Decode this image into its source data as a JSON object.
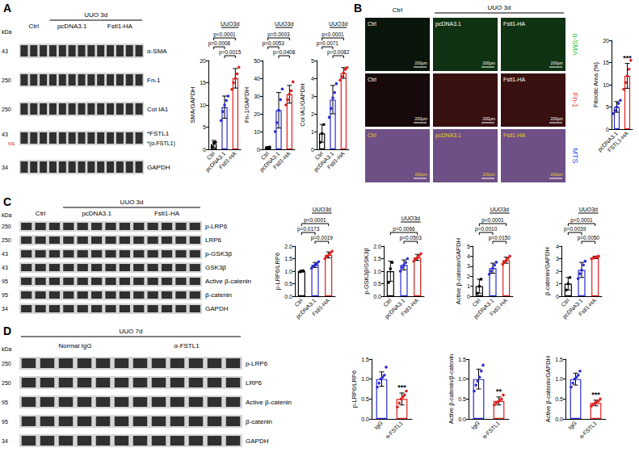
{
  "chart_data": [
    {
      "type": "bar",
      "ylabel": "SMA/GAPDH",
      "categories": [
        "Ctrl",
        "pcDNA3.1",
        "Fstl1-HA"
      ],
      "colors": [
        "#000000",
        "#2b2bd6",
        "#e02020"
      ],
      "values": [
        1.2,
        9.5,
        16
      ],
      "errors": [
        0.8,
        2.5,
        2.2
      ],
      "points": [
        [
          0.6,
          1.5,
          1.6
        ],
        [
          6.5,
          8.5,
          10,
          11,
          12
        ],
        [
          13.5,
          15,
          16,
          17,
          18.5
        ]
      ],
      "ylim": [
        0,
        20
      ],
      "yticks": [
        0,
        5,
        10,
        15,
        20
      ],
      "annotations": [
        {
          "text": "UUO3d",
          "between": [
            "pcDNA3.1",
            "Fstl1-HA"
          ],
          "kind": "condition"
        },
        {
          "text": "p<0.0001",
          "between": [
            "Ctrl",
            "Fstl1-HA"
          ]
        },
        {
          "text": "p=0.0008",
          "between": [
            "Ctrl",
            "pcDNA3.1"
          ]
        },
        {
          "text": "p=0.0015",
          "between": [
            "pcDNA3.1",
            "Fstl1-HA"
          ]
        }
      ]
    },
    {
      "type": "bar",
      "ylabel": "Fn-1/GAPDH",
      "categories": [
        "Ctrl",
        "pcDNA3.1",
        "Fstl1-HA"
      ],
      "colors": [
        "#000000",
        "#2b2bd6",
        "#e02020"
      ],
      "values": [
        1,
        22,
        31
      ],
      "errors": [
        0.5,
        10,
        5
      ],
      "points": [
        [
          0.6,
          1,
          1.3
        ],
        [
          10,
          15,
          22,
          28,
          34
        ],
        [
          25,
          28,
          31,
          33,
          38
        ]
      ],
      "ylim": [
        0,
        50
      ],
      "yticks": [
        0,
        10,
        20,
        30,
        40,
        50
      ],
      "annotations": [
        {
          "text": "UUO3d",
          "between": [
            "pcDNA3.1",
            "Fstl1-HA"
          ],
          "kind": "condition"
        },
        {
          "text": "p=0.0003",
          "between": [
            "Ctrl",
            "Fstl1-HA"
          ]
        },
        {
          "text": "p=0.0053",
          "between": [
            "Ctrl",
            "pcDNA3.1"
          ]
        },
        {
          "text": "p=0.0408",
          "between": [
            "pcDNA3.1",
            "Fstl1-HA"
          ]
        }
      ]
    },
    {
      "type": "bar",
      "ylabel": "Col IA1/GAPDH",
      "categories": [
        "Ctrl",
        "pcDNA3.1",
        "Fstl1-HA"
      ],
      "colors": [
        "#000000",
        "#2b2bd6",
        "#e02020"
      ],
      "values": [
        0.9,
        2.8,
        4.3
      ],
      "errors": [
        0.5,
        0.8,
        0.3
      ],
      "points": [
        [
          0.4,
          0.9,
          1.4
        ],
        [
          1.8,
          2.3,
          2.9,
          3.2,
          3.7
        ],
        [
          3.9,
          4.1,
          4.3,
          4.5,
          4.6
        ]
      ],
      "ylim": [
        0,
        5
      ],
      "yticks": [
        0,
        1,
        2,
        3,
        4,
        5
      ],
      "annotations": [
        {
          "text": "UUO3d",
          "between": [
            "pcDNA3.1",
            "Fstl1-HA"
          ],
          "kind": "condition"
        },
        {
          "text": "p<0.0001",
          "between": [
            "Ctrl",
            "Fstl1-HA"
          ]
        },
        {
          "text": "p=0.0071",
          "between": [
            "Ctrl",
            "pcDNA3.1"
          ]
        },
        {
          "text": "p=0.0082",
          "between": [
            "pcDNA3.1",
            "Fstl1-HA"
          ]
        }
      ]
    },
    {
      "type": "bar",
      "ylabel": "Fibrotic Area (%)",
      "categories": [
        "pcDNA3.1",
        "FSTL1-HA"
      ],
      "colors": [
        "#2b2bd6",
        "#e02020"
      ],
      "values": [
        5,
        12
      ],
      "errors": [
        1.2,
        2.8
      ],
      "points": [
        [
          3.5,
          4.2,
          5,
          5.8,
          6.5
        ],
        [
          9,
          10.5,
          12,
          13.5,
          15.5
        ]
      ],
      "ylim": [
        0,
        20
      ],
      "yticks": [
        0,
        5,
        10,
        15,
        20
      ],
      "annotations": [
        {
          "text": "***",
          "above": "FSTL1-HA"
        }
      ]
    },
    {
      "type": "bar",
      "ylabel": "p-LRP6/LRP6",
      "categories": [
        "Ctrl",
        "pcDNA3.1",
        "Fstl1-HA"
      ],
      "colors": [
        "#000000",
        "#2b2bd6",
        "#e02020"
      ],
      "values": [
        1.0,
        1.25,
        1.65
      ],
      "errors": [
        0.03,
        0.1,
        0.12
      ],
      "points": [
        [
          0.98,
          1,
          1.02
        ],
        [
          1.12,
          1.2,
          1.25,
          1.3,
          1.38
        ],
        [
          1.5,
          1.58,
          1.65,
          1.72,
          1.8
        ]
      ],
      "ylim": [
        0,
        2
      ],
      "yticks": [
        {
          "value": 0,
          "label": "0.0"
        },
        0.5,
        {
          "value": 1,
          "label": "1.0"
        },
        1.5,
        {
          "value": 2,
          "label": "2.0"
        }
      ],
      "annotations": [
        {
          "text": "UUO3d",
          "between": [
            "pcDNA3.1",
            "Fstl1-HA"
          ],
          "kind": "condition"
        },
        {
          "text": "p<0.0001",
          "between": [
            "Ctrl",
            "Fstl1-HA"
          ]
        },
        {
          "text": "p=0.0173",
          "between": [
            "Ctrl",
            "pcDNA3.1"
          ]
        },
        {
          "text": "p=0.0019",
          "between": [
            "pcDNA3.1",
            "Fstl1-HA"
          ]
        }
      ]
    },
    {
      "type": "bar",
      "ylabel": "p-GSK3β/GSK3β",
      "categories": [
        "Ctrl",
        "pcDNA3.1",
        "Fstl1-HA"
      ],
      "colors": [
        "#000000",
        "#2b2bd6",
        "#e02020"
      ],
      "values": [
        1.0,
        1.25,
        1.55
      ],
      "errors": [
        0.4,
        0.2,
        0.12
      ],
      "points": [
        [
          0.55,
          1.1,
          1.35
        ],
        [
          1,
          1.15,
          1.25,
          1.35,
          1.5
        ],
        [
          1.4,
          1.5,
          1.55,
          1.62,
          1.7
        ]
      ],
      "ylim": [
        0,
        2
      ],
      "yticks": [
        {
          "value": 0,
          "label": "0.0"
        },
        0.5,
        {
          "value": 1,
          "label": "1.0"
        },
        1.5,
        {
          "value": 2,
          "label": "2.0"
        }
      ],
      "annotations": [
        {
          "text": "UUO3d",
          "between": [
            "pcDNA3.1",
            "Fstl1-HA"
          ],
          "kind": "condition"
        },
        {
          "text": "p=0.0066",
          "between": [
            "Ctrl",
            "Fstl1-HA"
          ]
        },
        {
          "text": "p=0.0503",
          "between": [
            "pcDNA3.1",
            "Fstl1-HA"
          ]
        }
      ]
    },
    {
      "type": "bar",
      "ylabel": "Active β-catenin/GAPDH",
      "categories": [
        "Ctrl",
        "pcDNA3.1",
        "Fstl1-HA"
      ],
      "colors": [
        "#000000",
        "#2b2bd6",
        "#e02020"
      ],
      "values": [
        1.0,
        2.8,
        3.6
      ],
      "errors": [
        0.7,
        0.5,
        0.3
      ],
      "points": [
        [
          0.3,
          1,
          1.7
        ],
        [
          2.2,
          2.5,
          2.8,
          3.1,
          3.4
        ],
        [
          3.2,
          3.4,
          3.6,
          3.8,
          4
        ]
      ],
      "ylim": [
        0,
        5
      ],
      "yticks": [
        0,
        1,
        2,
        3,
        4,
        5
      ],
      "annotations": [
        {
          "text": "UUO3d",
          "between": [
            "pcDNA3.1",
            "Fstl1-HA"
          ],
          "kind": "condition"
        },
        {
          "text": "p<0.0001",
          "between": [
            "Ctrl",
            "Fstl1-HA"
          ]
        },
        {
          "text": "p=0.0010",
          "between": [
            "Ctrl",
            "pcDNA3.1"
          ]
        },
        {
          "text": "p=0.0150",
          "between": [
            "pcDNA3.1",
            "Fstl1-HA"
          ]
        }
      ]
    },
    {
      "type": "bar",
      "ylabel": "β-catenin/GAPDH",
      "categories": [
        "Ctrl",
        "pcDNA3.1",
        "Fstl1-HA"
      ],
      "colors": [
        "#000000",
        "#2b2bd6",
        "#e02020"
      ],
      "values": [
        1.0,
        2.1,
        3.1
      ],
      "errors": [
        0.5,
        0.6,
        0.1
      ],
      "points": [
        [
          0.5,
          1,
          1.5
        ],
        [
          1.4,
          1.8,
          2.1,
          2.5,
          2.8
        ],
        [
          3,
          3.05,
          3.1,
          3.15,
          3.2
        ]
      ],
      "ylim": [
        0,
        4
      ],
      "yticks": [
        0,
        1,
        2,
        3,
        4
      ],
      "annotations": [
        {
          "text": "UUO3d",
          "between": [
            "pcDNA3.1",
            "Fstl1-HA"
          ],
          "kind": "condition"
        },
        {
          "text": "p<0.0001",
          "between": [
            "Ctrl",
            "Fstl1-HA"
          ]
        },
        {
          "text": "p=0.0039",
          "between": [
            "Ctrl",
            "pcDNA3.1"
          ]
        },
        {
          "text": "p=0.0050",
          "between": [
            "pcDNA3.1",
            "Fstl1-HA"
          ]
        }
      ]
    },
    {
      "type": "bar",
      "ylabel": "p-LRP6/LRP6",
      "categories": [
        "IgG",
        "α-FSTL1"
      ],
      "colors": [
        "#2b2bd6",
        "#e02020"
      ],
      "values": [
        1.0,
        0.5
      ],
      "errors": [
        0.18,
        0.15
      ],
      "points": [
        [
          0.8,
          0.9,
          1,
          1.05,
          1.1,
          1.3
        ],
        [
          0.3,
          0.4,
          0.5,
          0.55,
          0.6,
          0.7
        ]
      ],
      "ylim": [
        0,
        1.5
      ],
      "yticks": [
        {
          "value": 0,
          "label": "0.0"
        },
        0.5,
        {
          "value": 1,
          "label": "1.0"
        },
        1.5
      ],
      "annotations": [
        {
          "text": "***",
          "above": "α-FSTL1"
        }
      ]
    },
    {
      "type": "bar",
      "ylabel": "Active β-catenin/β-catenin",
      "categories": [
        "IgG",
        "α-FSTL1"
      ],
      "colors": [
        "#2b2bd6",
        "#e02020"
      ],
      "values": [
        1.0,
        0.45
      ],
      "errors": [
        0.25,
        0.1
      ],
      "points": [
        [
          0.7,
          0.85,
          0.95,
          1.05,
          1.2,
          1.35
        ],
        [
          0.35,
          0.4,
          0.43,
          0.47,
          0.5,
          0.6
        ]
      ],
      "ylim": [
        0,
        1.5
      ],
      "yticks": [
        {
          "value": 0,
          "label": "0.0"
        },
        0.5,
        {
          "value": 1,
          "label": "1.0"
        },
        1.5
      ],
      "annotations": [
        {
          "text": "**",
          "above": "α-FSTL1"
        }
      ]
    },
    {
      "type": "bar",
      "ylabel": "Active β-catenin/GAPDH",
      "categories": [
        "IgG",
        "α-FSTL1"
      ],
      "colors": [
        "#2b2bd6",
        "#e02020"
      ],
      "values": [
        1.0,
        0.4
      ],
      "errors": [
        0.15,
        0.07
      ],
      "points": [
        [
          0.8,
          0.9,
          1,
          1.05,
          1.1,
          1.2
        ],
        [
          0.32,
          0.36,
          0.4,
          0.42,
          0.45,
          0.5
        ]
      ],
      "ylim": [
        0,
        1.5
      ],
      "yticks": [
        {
          "value": 0,
          "label": "0.0"
        },
        0.5,
        {
          "value": 1,
          "label": "1.0"
        },
        1.5
      ],
      "annotations": [
        {
          "text": "***",
          "above": "α-FSTL1"
        }
      ]
    }
  ],
  "panels": [
    "A",
    "B",
    "C",
    "D"
  ],
  "blots": [
    {
      "panel": "A",
      "kda_header": "kDa",
      "condition": "UUO 3d",
      "groups": [
        {
          "label": "Ctrl",
          "lanes": 3,
          "in_condition": false
        },
        {
          "label": "pcDNA3.1",
          "lanes": 5,
          "in_condition": true
        },
        {
          "label": "Fstl1-HA",
          "lanes": 5,
          "in_condition": true
        }
      ],
      "rows": [
        {
          "kda": "43",
          "label": "α-SMA"
        },
        {
          "kda": "250",
          "label": "Fn-1"
        },
        {
          "kda": "250",
          "label": "Col IA1"
        },
        {
          "kda": "43",
          "label": "*FSTL1",
          "sublabel": "*(α-FSTL1)",
          "note": "NS"
        },
        {
          "kda": "34",
          "label": "GAPDH"
        }
      ]
    },
    {
      "panel": "C",
      "kda_header": "kDa",
      "condition": "UUO 3d",
      "groups": [
        {
          "label": "Ctrl",
          "lanes": 3,
          "in_condition": false
        },
        {
          "label": "pcDNA3.1",
          "lanes": 5,
          "in_condition": true
        },
        {
          "label": "Fstl1-HA",
          "lanes": 5,
          "in_condition": true
        }
      ],
      "rows": [
        {
          "kda": "250",
          "label": "p-LRP6"
        },
        {
          "kda": "250",
          "label": "LRP6"
        },
        {
          "kda": "43",
          "label": "p-GSK3β"
        },
        {
          "kda": "43",
          "label": "GSK3β"
        },
        {
          "kda": "95",
          "label": "Active β-catenin"
        },
        {
          "kda": "95",
          "label": "β-catenin"
        },
        {
          "kda": "34",
          "label": "GAPDH"
        }
      ]
    },
    {
      "panel": "D",
      "kda_header": "kDa",
      "condition": "UUO 7d",
      "groups": [
        {
          "label": "Normal IgG",
          "lanes": 6,
          "in_condition": true
        },
        {
          "label": "α-FSTL1",
          "lanes": 6,
          "in_condition": true
        }
      ],
      "rows": [
        {
          "kda": "250",
          "label": "p-LRP6"
        },
        {
          "kda": "250",
          "label": "LRP6"
        },
        {
          "kda": "95",
          "label": "Active β-catenin"
        },
        {
          "kda": "95",
          "label": "β-catenin"
        },
        {
          "kda": "34",
          "label": "GAPDH"
        }
      ]
    }
  ],
  "images": {
    "panel": "B",
    "header": "Ctrl",
    "condition": "UUO 3d",
    "scale_bar": "200μm",
    "rows": [
      {
        "stain": "α-SMA",
        "color": "#2ecc40",
        "labels": [
          "Ctrl",
          "pcDNA3.1",
          "Fstl1-HA"
        ]
      },
      {
        "stain": "Fn-1",
        "color": "#e83030",
        "labels": [
          "Ctrl",
          null,
          "Fstl1-HA"
        ]
      },
      {
        "stain": "MTS",
        "color": "#3050ff",
        "labels": [
          "Ctrl",
          "pcDNA3.1",
          "Fstl1-HA"
        ]
      }
    ]
  }
}
